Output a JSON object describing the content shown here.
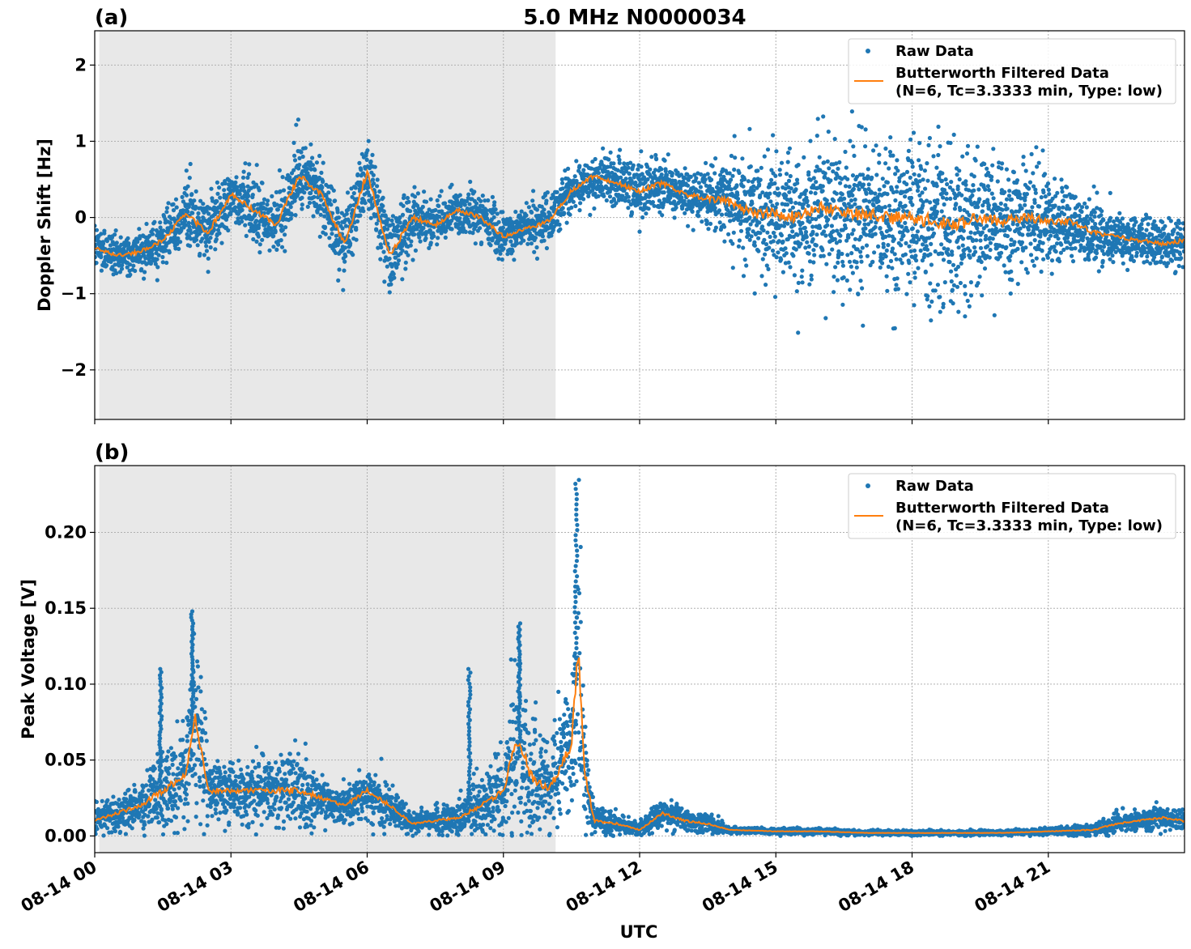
{
  "figure": {
    "suptitle": "5.0 MHz N0000034",
    "xlabel": "UTC"
  },
  "colors": {
    "raw": "#1f77b4",
    "filtered": "#ff7f0e",
    "shade": "#e8e8e8",
    "grid": "#b0b0b0"
  },
  "legend": {
    "raw_label": "Raw Data",
    "filtered_label_line1": "Butterworth Filtered Data",
    "filtered_label_line2": "(N=6, Tc=3.3333 min, Type: low)",
    "placement": "top-right"
  },
  "chart_data": [
    {
      "panel_label": "(a)",
      "type": "scatter",
      "title": "5.0 MHz N0000034",
      "ylabel": "Doppler Shift [Hz]",
      "xlabel": "",
      "xlim_hours": [
        0,
        24
      ],
      "ylim": [
        -2.65,
        2.45
      ],
      "yticks": [
        2,
        1,
        0,
        -1,
        -2
      ],
      "ytick_labels": [
        "2",
        "1",
        "0",
        "−1",
        "−2"
      ],
      "shaded_interval_hours": [
        0.1,
        10.15
      ],
      "grid": true,
      "legend": "top-right",
      "series": [
        {
          "name": "Butterworth Filtered Data",
          "kind": "line",
          "x_hours": [
            0,
            0.5,
            1.0,
            1.5,
            2.0,
            2.5,
            3.0,
            3.5,
            4.0,
            4.5,
            5.0,
            5.5,
            6.0,
            6.5,
            7.0,
            7.5,
            8.0,
            8.5,
            9.0,
            9.5,
            10.0,
            10.5,
            11.0,
            11.5,
            12.0,
            12.5,
            13.0,
            13.5,
            14.0,
            14.5,
            15.0,
            15.5,
            16.0,
            16.5,
            17.0,
            17.5,
            18.0,
            18.5,
            19.0,
            19.5,
            20.0,
            20.5,
            21.0,
            21.5,
            22.0,
            22.5,
            23.0,
            23.5,
            24.0
          ],
          "values": [
            -0.4,
            -0.5,
            -0.45,
            -0.3,
            0.05,
            -0.2,
            0.3,
            0.1,
            -0.1,
            0.55,
            0.3,
            -0.35,
            0.6,
            -0.5,
            0.0,
            -0.1,
            0.1,
            0.0,
            -0.25,
            -0.15,
            -0.05,
            0.35,
            0.55,
            0.45,
            0.35,
            0.45,
            0.3,
            0.25,
            0.2,
            0.05,
            0.05,
            0.0,
            0.15,
            0.05,
            0.05,
            0.0,
            0.0,
            -0.05,
            -0.1,
            0.0,
            -0.05,
            0.0,
            -0.05,
            -0.05,
            -0.2,
            -0.25,
            -0.3,
            -0.35,
            -0.3
          ]
        },
        {
          "name": "Raw Data",
          "kind": "points",
          "x_hours": [
            0,
            0.5,
            1.0,
            1.5,
            2.0,
            2.5,
            3.0,
            3.5,
            4.0,
            4.5,
            5.0,
            5.5,
            6.0,
            6.5,
            7.0,
            7.5,
            8.0,
            8.5,
            9.0,
            9.5,
            10.0,
            10.5,
            11.0,
            11.5,
            12.0,
            12.5,
            13.0,
            13.5,
            14.0,
            14.5,
            15.0,
            15.5,
            16.0,
            16.5,
            17.0,
            17.5,
            18.0,
            18.5,
            19.0,
            19.5,
            20.0,
            20.5,
            21.0,
            21.5,
            22.0,
            22.5,
            23.0,
            23.5,
            24.0
          ],
          "center": [
            -0.4,
            -0.5,
            -0.45,
            -0.3,
            0.05,
            -0.2,
            0.3,
            0.1,
            -0.1,
            0.55,
            0.3,
            -0.35,
            0.6,
            -0.5,
            0.0,
            -0.1,
            0.1,
            0.0,
            -0.25,
            -0.15,
            -0.05,
            0.35,
            0.55,
            0.45,
            0.35,
            0.45,
            0.3,
            0.25,
            0.2,
            0.05,
            0.05,
            0.0,
            0.15,
            0.05,
            0.05,
            0.0,
            0.0,
            -0.05,
            -0.1,
            0.0,
            -0.05,
            0.0,
            -0.05,
            -0.05,
            -0.2,
            -0.25,
            -0.3,
            -0.35,
            -0.3
          ],
          "spread": [
            0.25,
            0.25,
            0.3,
            0.3,
            0.4,
            0.4,
            0.35,
            0.4,
            0.4,
            0.45,
            0.4,
            0.45,
            0.45,
            0.5,
            0.35,
            0.3,
            0.3,
            0.3,
            0.3,
            0.25,
            0.3,
            0.3,
            0.3,
            0.35,
            0.35,
            0.35,
            0.3,
            0.4,
            0.65,
            0.75,
            0.8,
            0.85,
            0.9,
            0.95,
            0.95,
            1.0,
            1.0,
            1.0,
            0.95,
            0.9,
            0.85,
            0.7,
            0.6,
            0.45,
            0.35,
            0.3,
            0.3,
            0.3,
            0.3
          ]
        }
      ]
    },
    {
      "panel_label": "(b)",
      "type": "scatter",
      "title": "",
      "ylabel": "Peak Voltage [V]",
      "xlabel": "UTC",
      "xlim_hours": [
        0,
        24
      ],
      "ylim": [
        -0.011,
        0.244
      ],
      "yticks": [
        0.0,
        0.05,
        0.1,
        0.15,
        0.2
      ],
      "ytick_labels": [
        "0.00",
        "0.05",
        "0.10",
        "0.15",
        "0.20"
      ],
      "xticks_hours": [
        0,
        3,
        6,
        9,
        12,
        15,
        18,
        21
      ],
      "xtick_labels": [
        "08-14 00",
        "08-14 03",
        "08-14 06",
        "08-14 09",
        "08-14 12",
        "08-14 15",
        "08-14 18",
        "08-14 21"
      ],
      "shaded_interval_hours": [
        0.1,
        10.15
      ],
      "grid": true,
      "legend": "top-right",
      "series": [
        {
          "name": "Butterworth Filtered Data",
          "kind": "line",
          "x_hours": [
            0,
            0.5,
            1.0,
            1.5,
            2.0,
            2.2,
            2.5,
            3.0,
            3.5,
            4.0,
            4.5,
            5.0,
            5.5,
            6.0,
            6.5,
            7.0,
            7.5,
            8.0,
            8.5,
            9.0,
            9.3,
            9.6,
            10.0,
            10.5,
            10.65,
            10.8,
            11.0,
            11.5,
            12.0,
            12.5,
            13.0,
            13.5,
            14.0,
            15.0,
            16.0,
            17.0,
            18.0,
            19.0,
            20.0,
            21.0,
            22.0,
            22.5,
            23.0,
            23.5,
            24.0
          ],
          "values": [
            0.01,
            0.015,
            0.02,
            0.03,
            0.04,
            0.08,
            0.03,
            0.03,
            0.03,
            0.03,
            0.03,
            0.025,
            0.02,
            0.03,
            0.02,
            0.008,
            0.01,
            0.012,
            0.02,
            0.03,
            0.065,
            0.04,
            0.03,
            0.06,
            0.12,
            0.04,
            0.01,
            0.008,
            0.004,
            0.015,
            0.01,
            0.008,
            0.004,
            0.003,
            0.003,
            0.002,
            0.002,
            0.002,
            0.002,
            0.003,
            0.004,
            0.008,
            0.01,
            0.012,
            0.01
          ]
        },
        {
          "name": "Raw Data",
          "kind": "points",
          "x_hours": [
            0,
            0.5,
            1.0,
            1.5,
            2.0,
            2.2,
            2.5,
            3.0,
            3.5,
            4.0,
            4.5,
            5.0,
            5.5,
            6.0,
            6.5,
            7.0,
            7.5,
            8.0,
            8.5,
            9.0,
            9.3,
            9.6,
            10.0,
            10.5,
            10.65,
            10.8,
            11.0,
            11.5,
            12.0,
            12.5,
            13.0,
            13.5,
            14.0,
            15.0,
            16.0,
            17.0,
            18.0,
            19.0,
            20.0,
            21.0,
            22.0,
            22.5,
            23.0,
            23.5,
            24.0
          ],
          "center": [
            0.01,
            0.015,
            0.02,
            0.03,
            0.04,
            0.08,
            0.03,
            0.03,
            0.03,
            0.03,
            0.03,
            0.025,
            0.02,
            0.03,
            0.02,
            0.008,
            0.01,
            0.012,
            0.02,
            0.03,
            0.065,
            0.04,
            0.03,
            0.06,
            0.12,
            0.04,
            0.01,
            0.008,
            0.004,
            0.015,
            0.01,
            0.008,
            0.004,
            0.003,
            0.003,
            0.002,
            0.002,
            0.002,
            0.002,
            0.003,
            0.004,
            0.008,
            0.01,
            0.012,
            0.01
          ],
          "spread": [
            0.01,
            0.012,
            0.015,
            0.025,
            0.03,
            0.06,
            0.02,
            0.02,
            0.02,
            0.02,
            0.025,
            0.015,
            0.012,
            0.018,
            0.015,
            0.006,
            0.008,
            0.01,
            0.02,
            0.025,
            0.06,
            0.05,
            0.025,
            0.05,
            0.1,
            0.04,
            0.01,
            0.008,
            0.004,
            0.01,
            0.008,
            0.006,
            0.002,
            0.002,
            0.002,
            0.0015,
            0.0015,
            0.0015,
            0.0015,
            0.002,
            0.004,
            0.006,
            0.007,
            0.008,
            0.008
          ],
          "peak_annotations": [
            {
              "x_hours": 1.45,
              "y": 0.11
            },
            {
              "x_hours": 2.15,
              "y": 0.148
            },
            {
              "x_hours": 8.25,
              "y": 0.11
            },
            {
              "x_hours": 9.35,
              "y": 0.14
            },
            {
              "x_hours": 10.6,
              "y": 0.232
            }
          ]
        }
      ]
    }
  ]
}
